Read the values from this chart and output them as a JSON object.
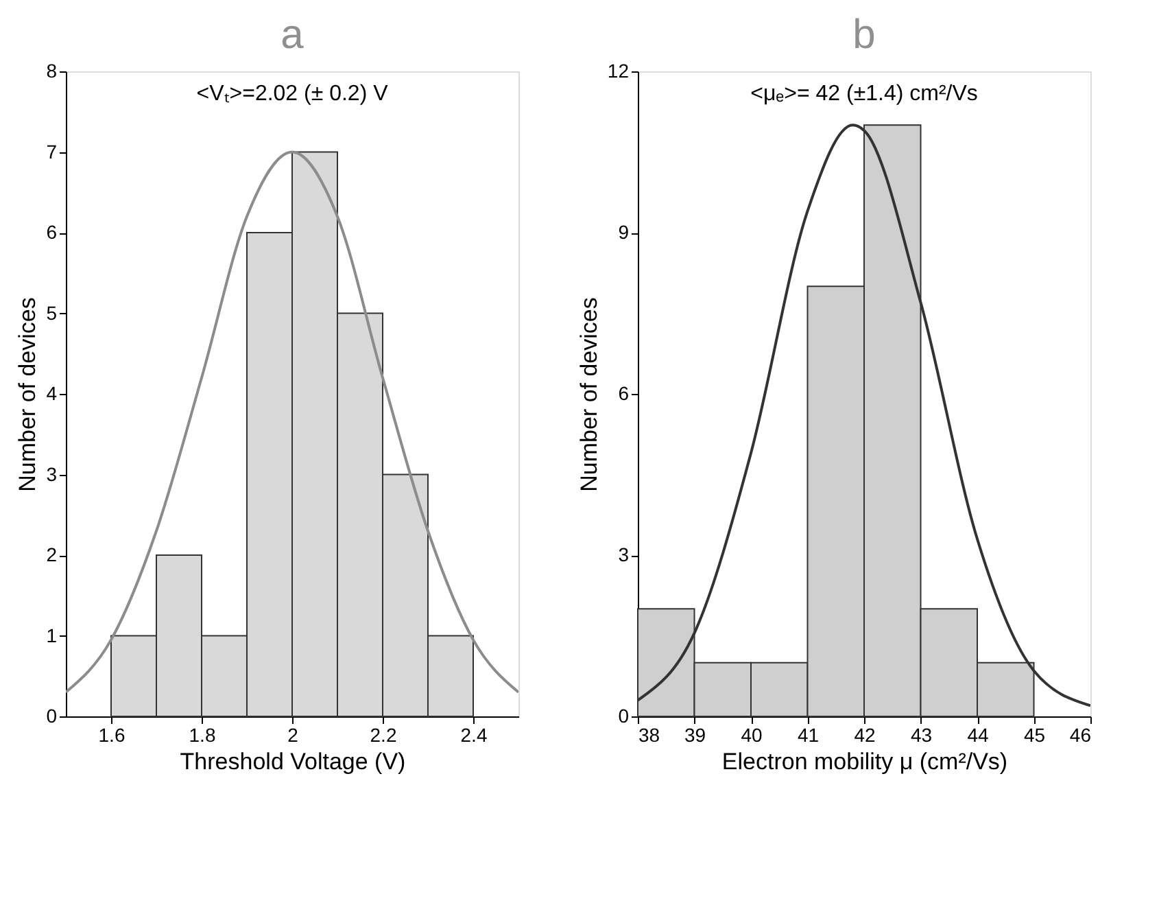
{
  "chart_data": [
    {
      "type": "histogram",
      "title": "a",
      "xlabel": "Threshold Voltage (V)",
      "ylabel": "Number of devices",
      "annotations": [
        "<Vₜ>=2.02 (± 0.2)  V"
      ],
      "bins": [
        1.6,
        1.7,
        1.8,
        1.9,
        2.0,
        2.1,
        2.2,
        2.3,
        2.4
      ],
      "values": [
        1,
        2,
        1,
        6,
        7,
        5,
        3,
        1
      ],
      "color": "#d9d9d9",
      "xlim": [
        1.5,
        2.5
      ],
      "xticks": [
        1.6,
        1.8,
        2.0,
        2.2,
        2.4
      ],
      "ylim": [
        0,
        8
      ],
      "yticks": [
        0,
        1,
        2,
        3,
        4,
        5,
        6,
        7,
        8
      ],
      "grid": false,
      "series": [
        {
          "type": "line",
          "color": "#8c8c8c",
          "x": [
            1.5,
            1.6,
            1.7,
            1.8,
            1.9,
            2.0,
            2.1,
            2.2,
            2.3,
            2.4,
            2.5
          ],
          "values": [
            0.3,
            0.95,
            2.3,
            4.2,
            6.2,
            7,
            6.2,
            4.2,
            2.3,
            0.95,
            0.3
          ]
        }
      ]
    },
    {
      "type": "histogram",
      "title": "b",
      "xlabel": "Electron mobility μ (cm²/Vs)",
      "ylabel": "Number of devices",
      "annotations": [
        "<μₑ>= 42 (±1.4) cm²/Vs"
      ],
      "bins": [
        38,
        39,
        40,
        41,
        42,
        43,
        44,
        45
      ],
      "values": [
        2,
        1,
        1,
        8,
        11,
        2,
        1
      ],
      "color": "#cfcfcf",
      "xlim": [
        38,
        46
      ],
      "xticks": [
        38,
        39,
        40,
        41,
        42,
        43,
        44,
        45,
        46
      ],
      "ylim": [
        0,
        12
      ],
      "yticks": [
        0,
        3,
        6,
        9,
        12
      ],
      "grid": false,
      "series": [
        {
          "type": "line",
          "color": "#333333",
          "x": [
            38,
            39,
            40,
            41,
            41.8,
            42,
            43,
            44,
            45,
            46
          ],
          "values": [
            0.3,
            1.55,
            4.9,
            9.4,
            11,
            10.9,
            7.7,
            3.3,
            0.85,
            0.2
          ]
        }
      ]
    }
  ]
}
